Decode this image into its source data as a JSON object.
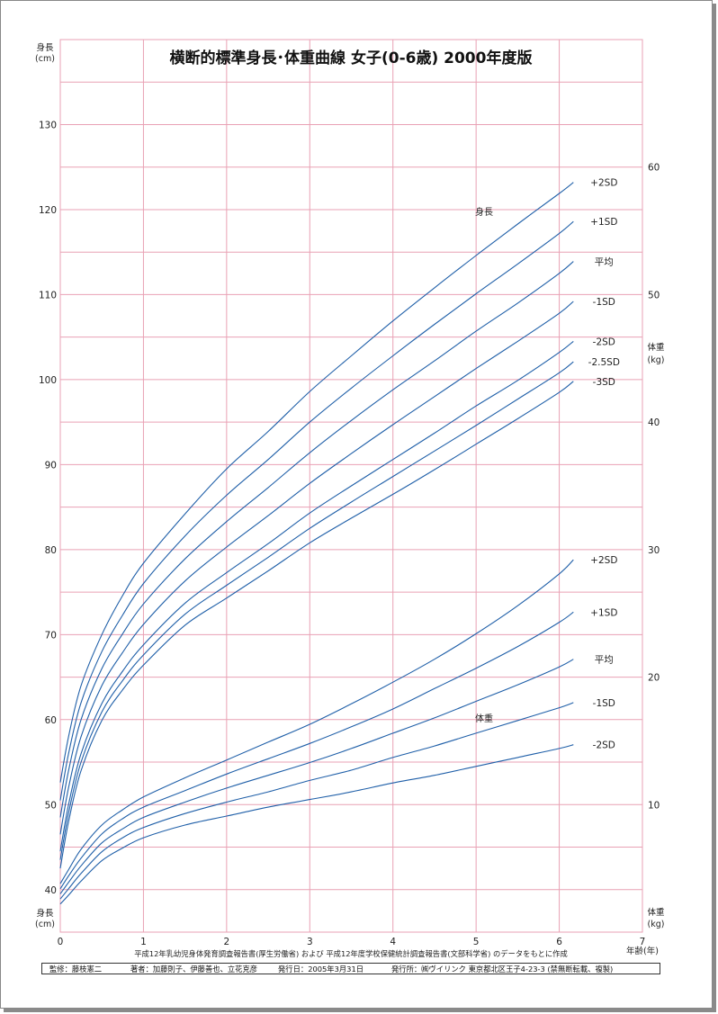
{
  "chart_data": {
    "type": "line",
    "title": "横断的標準身長･体重曲線 女子(0-6歳) 2000年度版",
    "x_axis": {
      "label": "年齢(年)",
      "range": [
        0,
        7
      ],
      "ticks": [
        "0",
        "1",
        "2",
        "3",
        "4",
        "5",
        "6",
        "7"
      ]
    },
    "y_axis_left": {
      "label": "身長",
      "unit": "(cm)",
      "range": [
        35,
        140
      ],
      "ticks": [
        "40",
        "50",
        "60",
        "70",
        "80",
        "90",
        "100",
        "110",
        "120",
        "130"
      ]
    },
    "y_axis_right": {
      "label": "体重",
      "unit": "(kg)",
      "range": [
        0,
        70
      ],
      "ticks": [
        "10",
        "20",
        "30",
        "40",
        "50",
        "60"
      ]
    },
    "grid": true,
    "height": {
      "label": "身長",
      "x": [
        0,
        0.1,
        0.25,
        0.5,
        0.75,
        1,
        1.5,
        2,
        2.5,
        3,
        3.5,
        4,
        4.5,
        5,
        5.5,
        6,
        6.17
      ],
      "series": [
        {
          "name": "+2SD",
          "values": [
            52.6,
            58.0,
            64.0,
            70.0,
            74.6,
            78.4,
            84.2,
            89.5,
            93.9,
            98.6,
            102.8,
            106.9,
            110.8,
            114.6,
            118.3,
            121.9,
            123.2
          ]
        },
        {
          "name": "+1SD",
          "values": [
            50.5,
            56.0,
            62.0,
            68.0,
            72.3,
            76.0,
            81.6,
            86.4,
            90.6,
            95.0,
            99.0,
            102.8,
            106.5,
            110.1,
            113.6,
            117.2,
            118.6
          ]
        },
        {
          "name": "平均",
          "values": [
            48.5,
            54.0,
            60.0,
            66.0,
            70.1,
            73.6,
            78.9,
            83.3,
            87.3,
            91.4,
            95.2,
            98.8,
            102.2,
            105.7,
            109.0,
            112.5,
            113.9
          ]
        },
        {
          "name": "-1SD",
          "values": [
            46.5,
            52.0,
            58.0,
            64.0,
            67.9,
            71.2,
            76.3,
            80.3,
            84.0,
            87.8,
            91.3,
            94.7,
            98.0,
            101.3,
            104.5,
            107.8,
            109.2
          ]
        },
        {
          "name": "-2SD",
          "values": [
            44.5,
            50.0,
            56.0,
            61.9,
            65.7,
            68.8,
            73.7,
            77.3,
            80.7,
            84.3,
            87.5,
            90.6,
            93.7,
            96.9,
            99.9,
            103.2,
            104.5
          ]
        },
        {
          "name": "-2.5SD",
          "values": [
            43.5,
            49.0,
            55.0,
            60.9,
            64.6,
            67.6,
            72.4,
            75.8,
            79.1,
            82.5,
            85.6,
            88.6,
            91.6,
            94.6,
            97.7,
            100.8,
            102.1
          ]
        },
        {
          "name": "-3SD",
          "values": [
            42.5,
            48.0,
            54.0,
            59.9,
            63.5,
            66.4,
            71.1,
            74.3,
            77.5,
            80.8,
            83.7,
            86.5,
            89.4,
            92.4,
            95.4,
            98.5,
            99.8
          ]
        }
      ]
    },
    "weight": {
      "label": "体重",
      "x": [
        0,
        0.1,
        0.25,
        0.5,
        0.75,
        1,
        1.5,
        2,
        2.5,
        3,
        3.5,
        4,
        4.5,
        5,
        5.5,
        6,
        6.17
      ],
      "series": [
        {
          "name": "+2SD",
          "values": [
            3.8,
            4.9,
            6.5,
            8.4,
            9.6,
            10.6,
            12.1,
            13.5,
            14.9,
            16.3,
            17.9,
            19.6,
            21.4,
            23.4,
            25.6,
            28.1,
            29.2
          ]
        },
        {
          "name": "+1SD",
          "values": [
            3.4,
            4.4,
            5.8,
            7.7,
            8.9,
            9.8,
            11.1,
            12.4,
            13.6,
            14.8,
            16.1,
            17.5,
            19.1,
            20.7,
            22.4,
            24.3,
            25.1
          ]
        },
        {
          "name": "平均",
          "values": [
            3.0,
            3.9,
            5.2,
            7.0,
            8.1,
            9.0,
            10.2,
            11.3,
            12.3,
            13.3,
            14.4,
            15.6,
            16.8,
            18.1,
            19.4,
            20.8,
            21.4
          ]
        },
        {
          "name": "-1SD",
          "values": [
            2.6,
            3.4,
            4.6,
            6.3,
            7.4,
            8.2,
            9.3,
            10.2,
            11.0,
            11.9,
            12.7,
            13.7,
            14.6,
            15.6,
            16.6,
            17.6,
            18.0
          ]
        },
        {
          "name": "-2SD",
          "values": [
            2.2,
            2.9,
            4.0,
            5.6,
            6.6,
            7.4,
            8.4,
            9.1,
            9.8,
            10.4,
            11.0,
            11.7,
            12.3,
            13.0,
            13.7,
            14.4,
            14.7
          ]
        }
      ]
    },
    "colors": {
      "curve": "#1f5fa8",
      "grid": "#e9a1b4",
      "text": "#222222"
    }
  },
  "footer": {
    "source_note": "平成12年乳幼児身体発育調査報告書(厚生労働省) および 平成12年度学校保健統計調査報告書(文部科学省) のデータをもとに作成",
    "supervisor": "監修：藤枝憲二",
    "authors": "著者：加藤則子、伊藤善也、立花克彦",
    "issue_date": "発行日：2005年3月31日",
    "publisher": "発行所：㈱ヴイリンク 東京都北区王子4-23-3 (禁無断転載、複製)"
  }
}
